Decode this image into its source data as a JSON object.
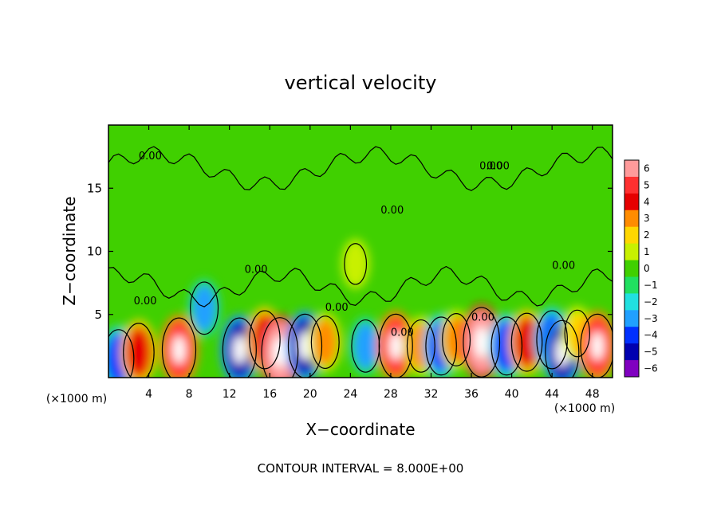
{
  "chart_data": {
    "type": "heatmap",
    "title": "vertical velocity",
    "xlabel": "X−coordinate",
    "ylabel": "Z−coordinate",
    "x_unit_left": "(×1000 m)",
    "x_unit_right": "(×1000 m)",
    "xlim": [
      0,
      50
    ],
    "ylim": [
      0,
      20
    ],
    "xticks": [
      4,
      8,
      12,
      16,
      20,
      24,
      28,
      32,
      36,
      40,
      44,
      48
    ],
    "yticks": [
      5,
      10,
      15
    ],
    "colorbar": {
      "labels": [
        "6",
        "5",
        "4",
        "3",
        "2",
        "1",
        "0",
        "−1",
        "−2",
        "−3",
        "−4",
        "−5",
        "−6"
      ],
      "colors": [
        "#ff9a9a",
        "#ff3030",
        "#e60000",
        "#ff8c00",
        "#ffd700",
        "#c8f000",
        "#40d000",
        "#20e060",
        "#20e0e0",
        "#20a0ff",
        "#0030ff",
        "#0000b0",
        "#8000c0"
      ]
    },
    "contour_labels": [
      "0.00",
      "0.00",
      "0.00",
      "0.00",
      "0.00",
      "0.00",
      "0.00",
      "0.00",
      "0.00",
      "0.00"
    ],
    "footer": "CONTOUR INTERVAL = 8.000E+00",
    "background_value": 0,
    "features": [
      {
        "x": 1.0,
        "z": 1.5,
        "w": -4
      },
      {
        "x": 3.0,
        "z": 2.0,
        "w": 4
      },
      {
        "x": 7.0,
        "z": 2.2,
        "w": 5
      },
      {
        "x": 9.5,
        "z": 5.5,
        "w": -3
      },
      {
        "x": 13.0,
        "z": 2.2,
        "w": -5
      },
      {
        "x": 15.5,
        "z": 3.0,
        "w": 4
      },
      {
        "x": 17.0,
        "z": 2.0,
        "w": 6
      },
      {
        "x": 19.5,
        "z": 2.5,
        "w": -5
      },
      {
        "x": 21.5,
        "z": 2.8,
        "w": 3
      },
      {
        "x": 24.5,
        "z": 9.0,
        "w": 1
      },
      {
        "x": 25.5,
        "z": 2.5,
        "w": -3
      },
      {
        "x": 28.5,
        "z": 2.5,
        "w": 5
      },
      {
        "x": 31.0,
        "z": 2.5,
        "w": 3
      },
      {
        "x": 33.0,
        "z": 2.5,
        "w": -4
      },
      {
        "x": 34.5,
        "z": 3.0,
        "w": 3
      },
      {
        "x": 37.0,
        "z": 2.8,
        "w": 6
      },
      {
        "x": 39.5,
        "z": 2.5,
        "w": -4
      },
      {
        "x": 41.5,
        "z": 2.8,
        "w": 4
      },
      {
        "x": 44.0,
        "z": 3.0,
        "w": -4
      },
      {
        "x": 45.0,
        "z": 2.0,
        "w": -5
      },
      {
        "x": 46.5,
        "z": 3.5,
        "w": 2
      },
      {
        "x": 48.5,
        "z": 2.5,
        "w": 5
      }
    ]
  }
}
